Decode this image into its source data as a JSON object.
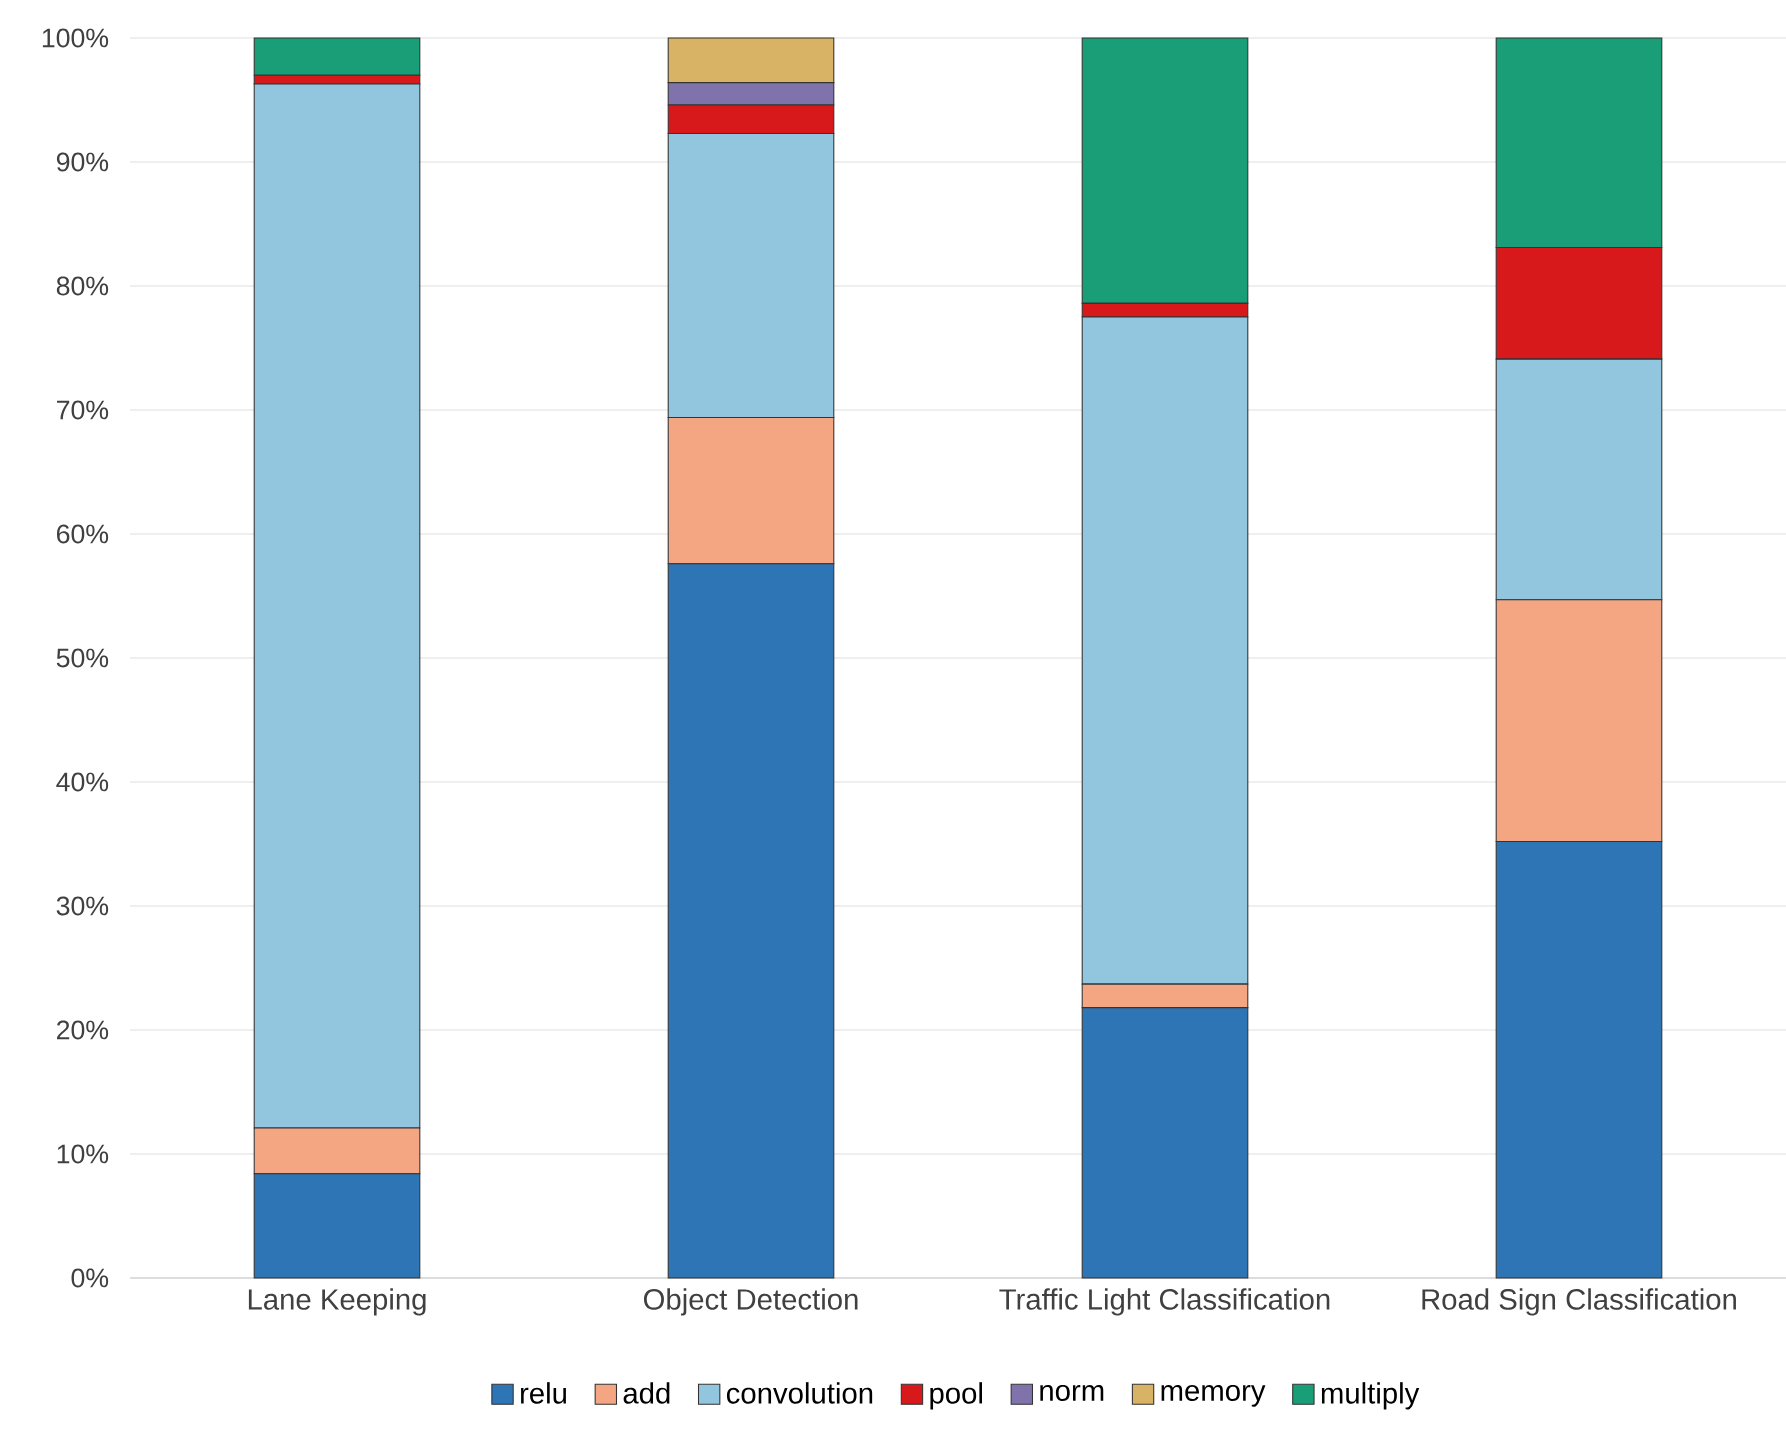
{
  "chart_data": {
    "type": "bar",
    "stacked": true,
    "categories": [
      "Lane Keeping",
      "Object Detection",
      "Traffic Light Classification",
      "Road Sign Classification"
    ],
    "series": [
      {
        "name": "relu",
        "color": "#2e75b6",
        "values": [
          8.4,
          57.6,
          21.8,
          35.2
        ]
      },
      {
        "name": "add",
        "color": "#f4a582",
        "values": [
          3.7,
          11.8,
          1.9,
          19.5
        ]
      },
      {
        "name": "convolution",
        "color": "#92c5de",
        "values": [
          84.2,
          22.9,
          53.8,
          19.4
        ]
      },
      {
        "name": "pool",
        "color": "#d7191c",
        "values": [
          0.7,
          2.3,
          1.1,
          9.0
        ]
      },
      {
        "name": "norm",
        "color": "#8073ac",
        "values": [
          null,
          1.8,
          null,
          null
        ]
      },
      {
        "name": "memory",
        "color": "#d8b365",
        "values": [
          null,
          3.6,
          null,
          null
        ]
      },
      {
        "name": "multiply",
        "color": "#1a9e77",
        "values": [
          3.0,
          null,
          21.4,
          16.9
        ]
      }
    ],
    "ylim": [
      0,
      100
    ],
    "yticks": [
      {
        "value": 0,
        "label": "0%"
      },
      {
        "value": 10,
        "label": "10%"
      },
      {
        "value": 20,
        "label": "20%"
      },
      {
        "value": 30,
        "label": "30%"
      },
      {
        "value": 40,
        "label": "40%"
      },
      {
        "value": 50,
        "label": "50%"
      },
      {
        "value": 60,
        "label": "60%"
      },
      {
        "value": 70,
        "label": "70%"
      },
      {
        "value": 80,
        "label": "80%"
      },
      {
        "value": 90,
        "label": "90%"
      },
      {
        "value": 100,
        "label": "100%"
      }
    ],
    "grid": "y",
    "legend": "bottom"
  }
}
